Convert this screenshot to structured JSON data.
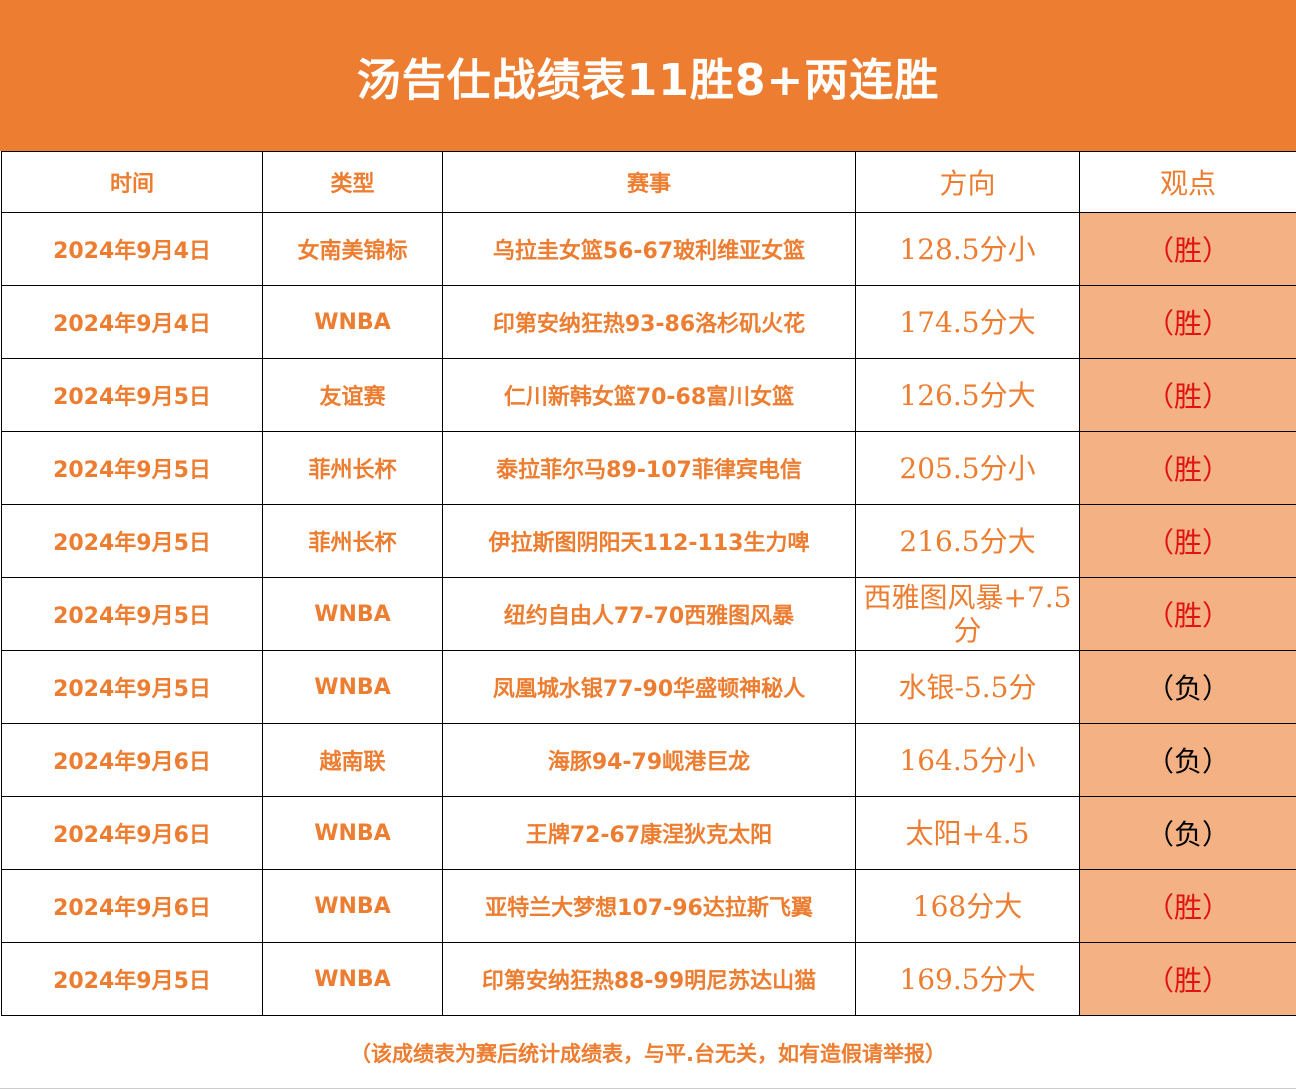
{
  "header": {
    "title": "汤告仕战绩表11胜8+两连胜"
  },
  "columns": [
    "时间",
    "类型",
    "赛事",
    "方向",
    "观点"
  ],
  "rows": [
    {
      "date": "2024年9月4日",
      "type": "女南美锦标",
      "match": "乌拉圭女篮56-67玻利维亚女篮",
      "direction": "128.5分小",
      "result": "（胜）",
      "outcome": "win"
    },
    {
      "date": "2024年9月4日",
      "type": "WNBA",
      "match": "印第安纳狂热93-86洛杉矶火花",
      "direction": "174.5分大",
      "result": "（胜）",
      "outcome": "win"
    },
    {
      "date": "2024年9月5日",
      "type": "友谊赛",
      "match": "仁川新韩女篮70-68富川女篮",
      "direction": "126.5分大",
      "result": "（胜）",
      "outcome": "win"
    },
    {
      "date": "2024年9月5日",
      "type": "菲州长杯",
      "match": "泰拉菲尔马89-107菲律宾电信",
      "direction": "205.5分小",
      "result": "（胜）",
      "outcome": "win"
    },
    {
      "date": "2024年9月5日",
      "type": "菲州长杯",
      "match": "伊拉斯图阴阳天112-113生力啤",
      "direction": "216.5分大",
      "result": "（胜）",
      "outcome": "win"
    },
    {
      "date": "2024年9月5日",
      "type": "WNBA",
      "match": "纽约自由人77-70西雅图风暴",
      "direction": "西雅图风暴+7.5分",
      "result": "（胜）",
      "outcome": "win"
    },
    {
      "date": "2024年9月5日",
      "type": "WNBA",
      "match": "凤凰城水银77-90华盛顿神秘人",
      "direction": "水银-5.5分",
      "result": "（负）",
      "outcome": "lose"
    },
    {
      "date": "2024年9月6日",
      "type": "越南联",
      "match": "海豚94-79岘港巨龙",
      "direction": "164.5分小",
      "result": "（负）",
      "outcome": "lose"
    },
    {
      "date": "2024年9月6日",
      "type": "WNBA",
      "match": "王牌72-67康涅狄克太阳",
      "direction": "太阳+4.5",
      "result": "（负）",
      "outcome": "lose"
    },
    {
      "date": "2024年9月6日",
      "type": "WNBA",
      "match": "亚特兰大梦想107-96达拉斯飞翼",
      "direction": "168分大",
      "result": "（胜）",
      "outcome": "win"
    },
    {
      "date": "2024年9月5日",
      "type": "WNBA",
      "match": "印第安纳狂热88-99明尼苏达山猫",
      "direction": "169.5分大",
      "result": "（胜）",
      "outcome": "win"
    }
  ],
  "footer": {
    "disclaimer": "（该成绩表为赛后统计成绩表，与平.台无关，如有造假请举报）"
  },
  "colors": {
    "brand_orange": "#ED7D31",
    "result_fill": "#F4B183",
    "win_red": "#E01212",
    "lose_black": "#000000"
  }
}
